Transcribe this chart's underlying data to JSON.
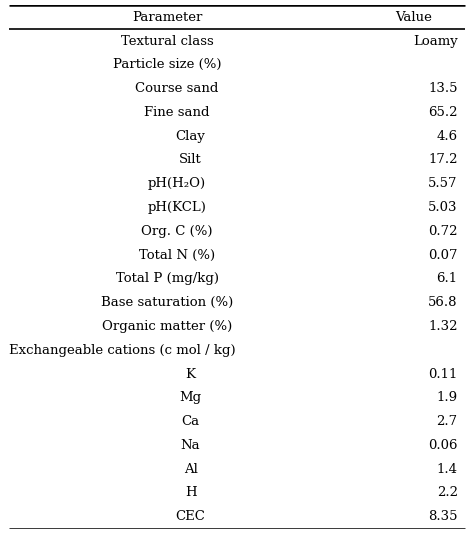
{
  "col_header": [
    "Parameter",
    "Value"
  ],
  "rows": [
    {
      "param": "Textural class",
      "value": "Loamy",
      "align": "center"
    },
    {
      "param": "Particle size (%)",
      "value": "",
      "align": "center"
    },
    {
      "param": "Course sand",
      "value": "13.5",
      "align": "center_right"
    },
    {
      "param": "Fine sand",
      "value": "65.2",
      "align": "center_right"
    },
    {
      "param": "Clay",
      "value": "4.6",
      "align": "center_right2"
    },
    {
      "param": "Silt",
      "value": "17.2",
      "align": "center_right2"
    },
    {
      "param": "pH(H₂O)",
      "value": "5.57",
      "align": "center_right"
    },
    {
      "param": "pH(KCL)",
      "value": "5.03",
      "align": "center_right"
    },
    {
      "param": "Org. C (%)",
      "value": "0.72",
      "align": "center_right"
    },
    {
      "param": "Total N (%)",
      "value": "0.07",
      "align": "center_right"
    },
    {
      "param": "Total P (mg/kg)",
      "value": "6.1",
      "align": "center"
    },
    {
      "param": "Base saturation (%)",
      "value": "56.8",
      "align": "center"
    },
    {
      "param": "Organic matter (%)",
      "value": "1.32",
      "align": "center"
    },
    {
      "param": "Exchangeable cations (c mol / kg)",
      "value": "",
      "align": "left"
    },
    {
      "param": "K",
      "value": "0.11",
      "align": "center_right2"
    },
    {
      "param": "Mg",
      "value": "1.9",
      "align": "center_right2"
    },
    {
      "param": "Ca",
      "value": "2.7",
      "align": "center_right2"
    },
    {
      "param": "Na",
      "value": "0.06",
      "align": "center_right2"
    },
    {
      "param": "Al",
      "value": "1.4",
      "align": "center_right2"
    },
    {
      "param": "H",
      "value": "2.2",
      "align": "center_right2"
    },
    {
      "param": "CEC",
      "value": "8.35",
      "align": "center_right2"
    }
  ],
  "font_size": 9.5,
  "header_font_size": 9.5,
  "bg_color": "#ffffff",
  "text_color": "#000000",
  "line_color": "#000000",
  "fig_width": 4.74,
  "fig_height": 5.34,
  "dpi": 100
}
